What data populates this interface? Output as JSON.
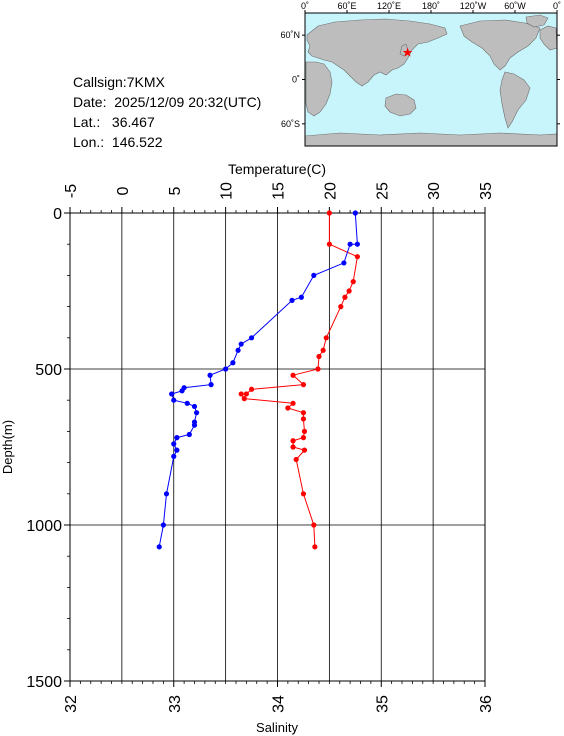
{
  "info": {
    "callsign_label": "Callsign:",
    "callsign": "7KMX",
    "date_label": "Date:",
    "date": "2025/12/09 20:32(UTC)",
    "lat_label": "Lat.:",
    "lat": "36.467",
    "lon_label": "Lon.:",
    "lon": "146.522"
  },
  "map": {
    "lon_ticks": [
      "0˚",
      "60˚E",
      "120˚E",
      "180˚",
      "120˚W",
      "60˚W",
      "0˚"
    ],
    "lat_ticks": [
      "60˚N",
      "0˚",
      "60˚S"
    ],
    "marker": {
      "lat": 36.467,
      "lon": 146.522
    },
    "ocean_color": "#c8f4fb",
    "land_color": "#bdbdbd",
    "marker_color": "#ff0000"
  },
  "chart_data": {
    "type": "line",
    "ylabel": "Depth(m)",
    "ylim": [
      0,
      1500
    ],
    "yticks": [
      0,
      500,
      1000,
      1500
    ],
    "top_axis": {
      "label": "Temperature(C)",
      "lim": [
        -5,
        35
      ],
      "ticks": [
        -5,
        0,
        5,
        10,
        15,
        20,
        25,
        30,
        35
      ]
    },
    "bottom_axis": {
      "label": "Salinity",
      "lim": [
        32,
        36
      ],
      "ticks": [
        32,
        33,
        34,
        35,
        36
      ]
    },
    "series": [
      {
        "axis": "top",
        "color": "#ff0000",
        "points": [
          {
            "x": 20.0,
            "y": 0
          },
          {
            "x": 20.0,
            "y": 100
          },
          {
            "x": 22.7,
            "y": 140
          },
          {
            "x": 22.3,
            "y": 220
          },
          {
            "x": 21.9,
            "y": 250
          },
          {
            "x": 21.5,
            "y": 270
          },
          {
            "x": 21.1,
            "y": 300
          },
          {
            "x": 19.7,
            "y": 400
          },
          {
            "x": 19.4,
            "y": 440
          },
          {
            "x": 19.0,
            "y": 460
          },
          {
            "x": 18.9,
            "y": 500
          },
          {
            "x": 16.5,
            "y": 520
          },
          {
            "x": 17.5,
            "y": 550
          },
          {
            "x": 12.5,
            "y": 565
          },
          {
            "x": 12.0,
            "y": 580
          },
          {
            "x": 11.5,
            "y": 580
          },
          {
            "x": 11.8,
            "y": 595
          },
          {
            "x": 16.5,
            "y": 610
          },
          {
            "x": 16.0,
            "y": 625
          },
          {
            "x": 17.5,
            "y": 640
          },
          {
            "x": 17.5,
            "y": 660
          },
          {
            "x": 17.6,
            "y": 700
          },
          {
            "x": 17.5,
            "y": 720
          },
          {
            "x": 16.5,
            "y": 730
          },
          {
            "x": 16.5,
            "y": 750
          },
          {
            "x": 17.6,
            "y": 760
          },
          {
            "x": 16.8,
            "y": 790
          },
          {
            "x": 17.5,
            "y": 900
          },
          {
            "x": 18.5,
            "y": 1000
          },
          {
            "x": 18.6,
            "y": 1070
          }
        ]
      },
      {
        "axis": "bottom",
        "color": "#0000ff",
        "points": [
          {
            "x": 34.75,
            "y": 0
          },
          {
            "x": 34.77,
            "y": 100
          },
          {
            "x": 34.7,
            "y": 100
          },
          {
            "x": 34.64,
            "y": 160
          },
          {
            "x": 34.35,
            "y": 200
          },
          {
            "x": 34.23,
            "y": 270
          },
          {
            "x": 34.14,
            "y": 280
          },
          {
            "x": 33.75,
            "y": 400
          },
          {
            "x": 33.65,
            "y": 420
          },
          {
            "x": 33.62,
            "y": 440
          },
          {
            "x": 33.57,
            "y": 480
          },
          {
            "x": 33.5,
            "y": 500
          },
          {
            "x": 33.35,
            "y": 520
          },
          {
            "x": 33.36,
            "y": 550
          },
          {
            "x": 33.1,
            "y": 560
          },
          {
            "x": 33.08,
            "y": 570
          },
          {
            "x": 32.98,
            "y": 580
          },
          {
            "x": 33.0,
            "y": 600
          },
          {
            "x": 33.13,
            "y": 610
          },
          {
            "x": 33.2,
            "y": 620
          },
          {
            "x": 33.22,
            "y": 640
          },
          {
            "x": 33.2,
            "y": 670
          },
          {
            "x": 33.2,
            "y": 680
          },
          {
            "x": 33.15,
            "y": 710
          },
          {
            "x": 33.03,
            "y": 720
          },
          {
            "x": 33.0,
            "y": 740
          },
          {
            "x": 33.03,
            "y": 760
          },
          {
            "x": 33.0,
            "y": 780
          },
          {
            "x": 32.93,
            "y": 900
          },
          {
            "x": 32.9,
            "y": 1000
          },
          {
            "x": 32.86,
            "y": 1070
          }
        ]
      }
    ],
    "grid": true
  }
}
